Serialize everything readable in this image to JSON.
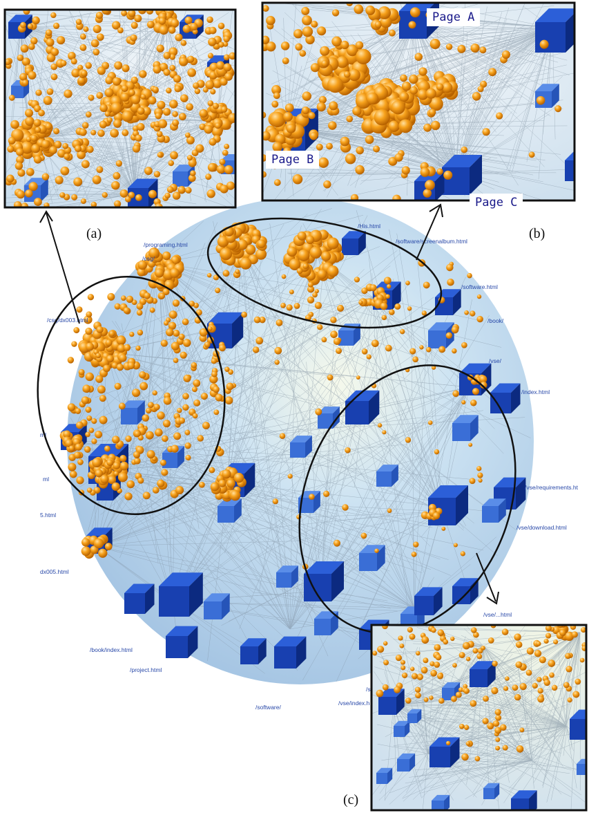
{
  "captions": {
    "a": "(a)",
    "b": "(b)",
    "c": "(c)"
  },
  "callouts": {
    "page_a": "Page A",
    "page_b": "Page B",
    "page_c": "Page C"
  },
  "node_labels": [
    "/His.html",
    "/software/screenalbum.html",
    "/programing.html",
    "/csg/",
    "/software.html",
    "/csg/dx003.html",
    "/book/",
    "/vse/",
    "/index.html",
    "/vse/requirements.ht",
    "/vse/download.html",
    "ml",
    "ml",
    "5.html",
    "dx005.html",
    "/vse/...html",
    "/book/index.html",
    "/project.html",
    "/software/",
    "/vse/index.h",
    "/s"
  ],
  "colors": {
    "sphere": "#9cc8e8",
    "page_node": "#1a4cc0",
    "leaf_node": "#f39a12",
    "edge": "#8a9aa8"
  }
}
